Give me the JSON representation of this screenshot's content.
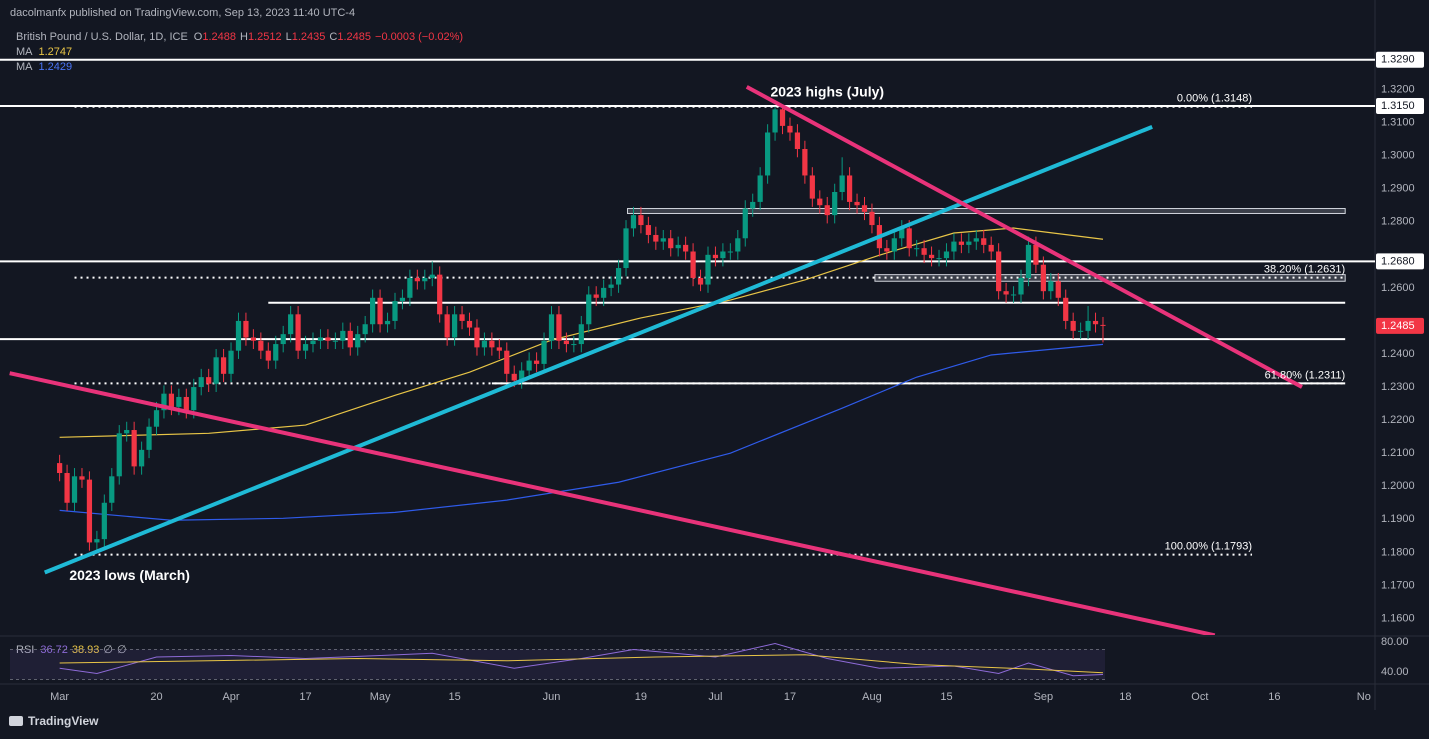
{
  "header": {
    "published": "dacolmanfx published on TradingView.com, Sep 13, 2023 11:40 UTC-4",
    "symbol": "British Pound / U.S. Dollar, 1D, ICE",
    "quote_letters": [
      "O",
      "H",
      "L",
      "C"
    ],
    "change": "−0.0003 (−0.02%)",
    "footer": "TradingView"
  },
  "chart_data": {
    "type": "candlestick",
    "up_color": "#089981",
    "down_color": "#f23645",
    "background": "#131722",
    "grid": false,
    "xlim": [
      -8,
      176.5
    ],
    "ylim": [
      1.155,
      1.338
    ],
    "xticks": [
      {
        "value": 0,
        "label": "Mar"
      },
      {
        "value": 13,
        "label": "20"
      },
      {
        "value": 23,
        "label": "Apr"
      },
      {
        "value": 33,
        "label": "17"
      },
      {
        "value": 43,
        "label": "May"
      },
      {
        "value": 53,
        "label": "15"
      },
      {
        "value": 66,
        "label": "Jun"
      },
      {
        "value": 78,
        "label": "19"
      },
      {
        "value": 88,
        "label": "Jul"
      },
      {
        "value": 98,
        "label": "17"
      },
      {
        "value": 109,
        "label": "Aug"
      },
      {
        "value": 119,
        "label": "15"
      },
      {
        "value": 132,
        "label": "Sep"
      },
      {
        "value": 143,
        "label": "18"
      },
      {
        "value": 153,
        "label": "Oct"
      },
      {
        "value": 163,
        "label": "16"
      },
      {
        "value": 175,
        "label": "No"
      }
    ],
    "yticks": [
      {
        "value": 1.32,
        "label": "1.3200"
      },
      {
        "value": 1.31,
        "label": "1.3100"
      },
      {
        "value": 1.3,
        "label": "1.3000"
      },
      {
        "value": 1.29,
        "label": "1.2900"
      },
      {
        "value": 1.28,
        "label": "1.2800"
      },
      {
        "value": 1.26,
        "label": "1.2600"
      },
      {
        "value": 1.24,
        "label": "1.2400"
      },
      {
        "value": 1.23,
        "label": "1.2300"
      },
      {
        "value": 1.22,
        "label": "1.2200"
      },
      {
        "value": 1.21,
        "label": "1.2100"
      },
      {
        "value": 1.2,
        "label": "1.2000"
      },
      {
        "value": 1.19,
        "label": "1.1900"
      },
      {
        "value": 1.18,
        "label": "1.1800"
      },
      {
        "value": 1.17,
        "label": "1.1700"
      },
      {
        "value": 1.16,
        "label": "1.1600"
      }
    ],
    "ohlc": [
      [
        1.207,
        1.2095,
        1.2015,
        1.204
      ],
      [
        1.204,
        1.2065,
        1.1925,
        1.195
      ],
      [
        1.195,
        1.2055,
        1.1925,
        1.203
      ],
      [
        1.203,
        1.2055,
        1.1995,
        1.202
      ],
      [
        1.202,
        1.2045,
        1.1805,
        1.183
      ],
      [
        1.183,
        1.1865,
        1.1805,
        1.184
      ],
      [
        1.184,
        1.1975,
        1.1815,
        1.195
      ],
      [
        1.195,
        1.2055,
        1.1925,
        1.203
      ],
      [
        1.203,
        1.2185,
        1.2005,
        1.216
      ],
      [
        1.216,
        1.2195,
        1.2135,
        1.217
      ],
      [
        1.217,
        1.2195,
        1.2035,
        1.206
      ],
      [
        1.206,
        1.2135,
        1.2035,
        1.211
      ],
      [
        1.211,
        1.2205,
        1.2085,
        1.218
      ],
      [
        1.218,
        1.2255,
        1.2155,
        1.223
      ],
      [
        1.223,
        1.2305,
        1.2205,
        1.228
      ],
      [
        1.228,
        1.2305,
        1.2215,
        1.224
      ],
      [
        1.224,
        1.2295,
        1.2215,
        1.227
      ],
      [
        1.227,
        1.2295,
        1.2205,
        1.223
      ],
      [
        1.223,
        1.2325,
        1.2205,
        1.23
      ],
      [
        1.23,
        1.2355,
        1.2275,
        1.233
      ],
      [
        1.233,
        1.2355,
        1.2285,
        1.231
      ],
      [
        1.231,
        1.2415,
        1.2285,
        1.239
      ],
      [
        1.239,
        1.2415,
        1.2315,
        1.234
      ],
      [
        1.234,
        1.2435,
        1.2315,
        1.241
      ],
      [
        1.241,
        1.2525,
        1.2385,
        1.25
      ],
      [
        1.25,
        1.2525,
        1.2425,
        1.245
      ],
      [
        1.245,
        1.2475,
        1.2415,
        1.244
      ],
      [
        1.244,
        1.2465,
        1.2385,
        1.241
      ],
      [
        1.241,
        1.2435,
        1.2355,
        1.238
      ],
      [
        1.238,
        1.2455,
        1.2355,
        1.243
      ],
      [
        1.243,
        1.2485,
        1.2405,
        1.246
      ],
      [
        1.246,
        1.2545,
        1.2435,
        1.252
      ],
      [
        1.252,
        1.2545,
        1.2385,
        1.241
      ],
      [
        1.241,
        1.2455,
        1.2385,
        1.243
      ],
      [
        1.243,
        1.2465,
        1.2405,
        1.244
      ],
      [
        1.244,
        1.2475,
        1.2415,
        1.245
      ],
      [
        1.245,
        1.2475,
        1.2415,
        1.244
      ],
      [
        1.244,
        1.2465,
        1.2415,
        1.244
      ],
      [
        1.244,
        1.2495,
        1.2415,
        1.247
      ],
      [
        1.247,
        1.2495,
        1.2395,
        1.242
      ],
      [
        1.242,
        1.2485,
        1.2395,
        1.246
      ],
      [
        1.246,
        1.2515,
        1.2435,
        1.249
      ],
      [
        1.249,
        1.2595,
        1.2465,
        1.257
      ],
      [
        1.257,
        1.2595,
        1.2465,
        1.249
      ],
      [
        1.249,
        1.2525,
        1.2465,
        1.25
      ],
      [
        1.25,
        1.2585,
        1.2475,
        1.256
      ],
      [
        1.256,
        1.2595,
        1.2535,
        1.257
      ],
      [
        1.257,
        1.2655,
        1.2545,
        1.263
      ],
      [
        1.263,
        1.2655,
        1.2595,
        1.262
      ],
      [
        1.262,
        1.2655,
        1.2595,
        1.263
      ],
      [
        1.263,
        1.268,
        1.2605,
        1.264
      ],
      [
        1.264,
        1.2665,
        1.2495,
        1.252
      ],
      [
        1.252,
        1.2545,
        1.2425,
        1.245
      ],
      [
        1.245,
        1.2545,
        1.2425,
        1.252
      ],
      [
        1.252,
        1.2545,
        1.2475,
        1.25
      ],
      [
        1.25,
        1.2525,
        1.2455,
        1.248
      ],
      [
        1.248,
        1.2505,
        1.2395,
        1.242
      ],
      [
        1.242,
        1.2465,
        1.2395,
        1.244
      ],
      [
        1.244,
        1.2465,
        1.2395,
        1.242
      ],
      [
        1.242,
        1.2445,
        1.2385,
        1.241
      ],
      [
        1.241,
        1.2435,
        1.2315,
        1.234
      ],
      [
        1.234,
        1.2365,
        1.23,
        1.232
      ],
      [
        1.232,
        1.2375,
        1.2295,
        1.235
      ],
      [
        1.235,
        1.2405,
        1.2325,
        1.238
      ],
      [
        1.238,
        1.2405,
        1.2345,
        1.237
      ],
      [
        1.237,
        1.2465,
        1.2345,
        1.244
      ],
      [
        1.244,
        1.2545,
        1.2415,
        1.252
      ],
      [
        1.252,
        1.2545,
        1.2415,
        1.244
      ],
      [
        1.244,
        1.2465,
        1.2405,
        1.243
      ],
      [
        1.243,
        1.2455,
        1.2405,
        1.243
      ],
      [
        1.243,
        1.2515,
        1.2405,
        1.249
      ],
      [
        1.249,
        1.2605,
        1.2465,
        1.258
      ],
      [
        1.258,
        1.2605,
        1.2545,
        1.257
      ],
      [
        1.257,
        1.2625,
        1.2545,
        1.26
      ],
      [
        1.26,
        1.2635,
        1.2575,
        1.261
      ],
      [
        1.261,
        1.2685,
        1.2585,
        1.266
      ],
      [
        1.266,
        1.2805,
        1.2635,
        1.278
      ],
      [
        1.278,
        1.2845,
        1.2755,
        1.282
      ],
      [
        1.282,
        1.2845,
        1.2765,
        1.279
      ],
      [
        1.279,
        1.2815,
        1.2735,
        1.276
      ],
      [
        1.276,
        1.2785,
        1.2715,
        1.274
      ],
      [
        1.274,
        1.2775,
        1.2715,
        1.275
      ],
      [
        1.275,
        1.2775,
        1.2695,
        1.272
      ],
      [
        1.272,
        1.2755,
        1.2695,
        1.273
      ],
      [
        1.273,
        1.2755,
        1.2685,
        1.271
      ],
      [
        1.271,
        1.2735,
        1.2605,
        1.263
      ],
      [
        1.263,
        1.2655,
        1.259,
        1.261
      ],
      [
        1.261,
        1.2725,
        1.2585,
        1.27
      ],
      [
        1.27,
        1.2725,
        1.2665,
        1.269
      ],
      [
        1.269,
        1.2735,
        1.2665,
        1.271
      ],
      [
        1.271,
        1.2735,
        1.2685,
        1.271
      ],
      [
        1.271,
        1.2775,
        1.2685,
        1.275
      ],
      [
        1.275,
        1.2865,
        1.2725,
        1.284
      ],
      [
        1.284,
        1.2885,
        1.2815,
        1.286
      ],
      [
        1.286,
        1.2965,
        1.2835,
        1.294
      ],
      [
        1.294,
        1.3095,
        1.2915,
        1.307
      ],
      [
        1.307,
        1.3148,
        1.3045,
        1.314
      ],
      [
        1.314,
        1.3145,
        1.3065,
        1.309
      ],
      [
        1.309,
        1.3115,
        1.3045,
        1.307
      ],
      [
        1.307,
        1.3095,
        1.2995,
        1.302
      ],
      [
        1.302,
        1.3045,
        1.2915,
        1.294
      ],
      [
        1.294,
        1.2965,
        1.2845,
        1.287
      ],
      [
        1.287,
        1.2895,
        1.2825,
        1.285
      ],
      [
        1.285,
        1.2875,
        1.2795,
        1.282
      ],
      [
        1.282,
        1.2915,
        1.2795,
        1.289
      ],
      [
        1.289,
        1.2995,
        1.2865,
        1.294
      ],
      [
        1.294,
        1.2965,
        1.2835,
        1.286
      ],
      [
        1.286,
        1.2885,
        1.2825,
        1.285
      ],
      [
        1.285,
        1.2875,
        1.2805,
        1.283
      ],
      [
        1.283,
        1.2855,
        1.2765,
        1.279
      ],
      [
        1.279,
        1.2815,
        1.2695,
        1.272
      ],
      [
        1.272,
        1.2745,
        1.2685,
        1.271
      ],
      [
        1.271,
        1.2775,
        1.2685,
        1.275
      ],
      [
        1.275,
        1.2805,
        1.2725,
        1.278
      ],
      [
        1.278,
        1.2805,
        1.2695,
        1.272
      ],
      [
        1.272,
        1.2745,
        1.2695,
        1.272
      ],
      [
        1.272,
        1.2745,
        1.2675,
        1.27
      ],
      [
        1.27,
        1.2725,
        1.2665,
        1.269
      ],
      [
        1.269,
        1.2715,
        1.2665,
        1.269
      ],
      [
        1.269,
        1.2735,
        1.2665,
        1.271
      ],
      [
        1.271,
        1.2765,
        1.2685,
        1.274
      ],
      [
        1.274,
        1.2765,
        1.2705,
        1.273
      ],
      [
        1.273,
        1.2765,
        1.2705,
        1.274
      ],
      [
        1.274,
        1.2775,
        1.2715,
        1.275
      ],
      [
        1.275,
        1.2775,
        1.2705,
        1.273
      ],
      [
        1.273,
        1.2755,
        1.2685,
        1.271
      ],
      [
        1.271,
        1.2735,
        1.2565,
        1.259
      ],
      [
        1.259,
        1.2615,
        1.2555,
        1.258
      ],
      [
        1.258,
        1.2605,
        1.2555,
        1.258
      ],
      [
        1.258,
        1.2655,
        1.2555,
        1.263
      ],
      [
        1.263,
        1.2755,
        1.2605,
        1.273
      ],
      [
        1.273,
        1.2755,
        1.2645,
        1.267
      ],
      [
        1.267,
        1.2695,
        1.2565,
        1.259
      ],
      [
        1.259,
        1.2645,
        1.2565,
        1.262
      ],
      [
        1.262,
        1.2645,
        1.2545,
        1.257
      ],
      [
        1.257,
        1.2595,
        1.2475,
        1.25
      ],
      [
        1.25,
        1.2525,
        1.2445,
        1.247
      ],
      [
        1.247,
        1.2495,
        1.2445,
        1.247
      ],
      [
        1.247,
        1.2545,
        1.2445,
        1.25
      ],
      [
        1.25,
        1.2525,
        1.2465,
        1.249
      ],
      [
        1.2488,
        1.2512,
        1.2435,
        1.2485
      ]
    ],
    "ma_lines": [
      {
        "name": "MA",
        "color": "#e8c547",
        "x": [
          0,
          20,
          33,
          45,
          55,
          66,
          78,
          90,
          100,
          110,
          120,
          128,
          140
        ],
        "values": [
          1.2148,
          1.216,
          1.2185,
          1.2275,
          1.2345,
          1.2442,
          1.2509,
          1.2563,
          1.2624,
          1.2699,
          1.2766,
          1.2781,
          1.2747
        ]
      },
      {
        "name": "MA",
        "color": "#2f5bea",
        "x": [
          0,
          15,
          30,
          45,
          60,
          75,
          90,
          105,
          115,
          125,
          140
        ],
        "values": [
          1.1927,
          1.1897,
          1.1903,
          1.1921,
          1.1958,
          1.2012,
          1.21,
          1.2236,
          1.233,
          1.2397,
          1.2429
        ]
      }
    ],
    "levels": [
      {
        "value": 1.329,
        "label": "1.3290",
        "x": [
          -8,
          176.5
        ]
      },
      {
        "value": 1.315,
        "label": "1.3150",
        "x": [
          -8,
          176.5
        ]
      },
      {
        "value": 1.268,
        "label": "1.2680",
        "x": [
          -8,
          176.5
        ]
      },
      {
        "value": 1.2555,
        "x": [
          28,
          172.5
        ]
      },
      {
        "value": 1.2445,
        "x": [
          -8,
          172.5
        ]
      },
      {
        "value": 1.2311,
        "x": [
          58,
          172.5
        ]
      }
    ],
    "fib_levels": [
      {
        "value": 1.3148,
        "label": "0.00% (1.3148)",
        "x": [
          2,
          160
        ]
      },
      {
        "value": 1.2631,
        "label": "38.20% (1.2631)",
        "x": [
          2,
          172.5
        ]
      },
      {
        "value": 1.2311,
        "label": "61.80% (1.2311)",
        "x": [
          2,
          172.5
        ]
      },
      {
        "value": 1.1793,
        "label": "100.00% (1.1793)",
        "x": [
          2,
          160
        ]
      }
    ],
    "zones": [
      {
        "x": [
          76.2,
          172.5
        ],
        "y": [
          1.2825,
          1.284
        ]
      },
      {
        "x": [
          109.4,
          172.5
        ],
        "y": [
          1.262,
          1.264
        ]
      }
    ],
    "trendlines": [
      {
        "color": "#1fbad6",
        "x": [
          -2,
          146.6
        ],
        "y": [
          1.1739,
          1.3087
        ]
      },
      {
        "color": "#e8337a",
        "x": [
          92.2,
          166.7
        ],
        "y": [
          1.3208,
          1.23
        ]
      },
      {
        "color": "#e8337a",
        "x": [
          -6.7,
          155
        ],
        "y": [
          1.2342,
          1.1549
        ]
      }
    ],
    "annotations": [
      {
        "text": "2023 highs (July)",
        "x": 103,
        "y": 1.319
      },
      {
        "text": "2023 lows (March)",
        "x": 9.4,
        "y": 1.1727
      }
    ],
    "rsi": {
      "name": "RSI",
      "ylim": [
        24,
        88
      ],
      "band": [
        30,
        70
      ],
      "yticks": [
        {
          "value": 80,
          "label": "80.00"
        },
        {
          "value": 40,
          "label": "40.00"
        }
      ],
      "extras": [
        "∅",
        "∅"
      ],
      "series": [
        {
          "color": "#8e6bd8",
          "x": [
            0,
            5,
            13,
            23,
            33,
            43,
            50,
            61,
            70,
            77,
            88,
            96,
            103,
            110,
            120,
            126,
            130,
            136,
            140
          ],
          "values": [
            45,
            38,
            60,
            62,
            58,
            62,
            65,
            45,
            58,
            70,
            60,
            78,
            58,
            45,
            48,
            38,
            52,
            35,
            36.72
          ]
        },
        {
          "color": "#e8c547",
          "x": [
            0,
            20,
            40,
            60,
            80,
            100,
            115,
            130,
            140
          ],
          "values": [
            52,
            55,
            58,
            55,
            60,
            63,
            50,
            44,
            38.93
          ]
        }
      ]
    }
  }
}
